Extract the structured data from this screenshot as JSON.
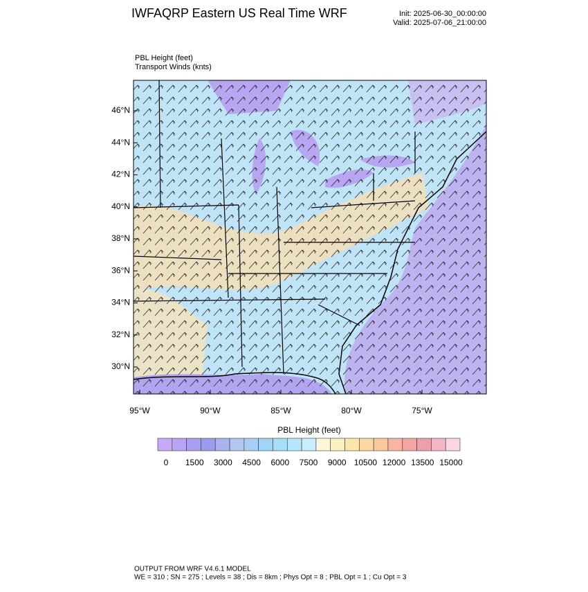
{
  "header": {
    "title": "IWFAQRP Eastern US Real Time WRF",
    "init": "Init: 2025-06-30_00:00:00",
    "valid": "Valid: 2025-07-06_21:00:00"
  },
  "plot": {
    "field_label": "PBL Height   (feet)",
    "wind_label": "Transport Winds   (knts)",
    "lat_labels": [
      "46°N",
      "44°N",
      "42°N",
      "40°N",
      "38°N",
      "36°N",
      "34°N",
      "32°N",
      "30°N"
    ],
    "lon_labels": [
      "95°W",
      "90°W",
      "85°W",
      "80°W",
      "75°W"
    ]
  },
  "colorbar": {
    "title": "PBL Height  (feet)",
    "ticks": [
      0,
      1500,
      3000,
      4500,
      6000,
      7500,
      9000,
      10500,
      12000,
      13500,
      15000
    ],
    "colors": [
      "#c9a8f5",
      "#b9a3f2",
      "#a99ff0",
      "#9c9cee",
      "#a8b4ee",
      "#b3c6f0",
      "#a9cef5",
      "#9fd5f7",
      "#a7def8",
      "#b5e6f9",
      "#c7eefa",
      "#fbf6dc",
      "#fbf0c0",
      "#fce6ac",
      "#fcd9a3",
      "#fac9a0",
      "#f8b6a0",
      "#f5a4a4",
      "#eea0aa",
      "#f4b6c4",
      "#fbd8e0"
    ]
  },
  "footer": {
    "line1": "OUTPUT FROM WRF V4.6.1 MODEL",
    "line2": "WE = 310 ; SN = 275 ; Levels = 38 ; Dis = 8km ; Phys Opt = 8 ; PBL Opt = 1 ; Cu Opt = 3"
  }
}
